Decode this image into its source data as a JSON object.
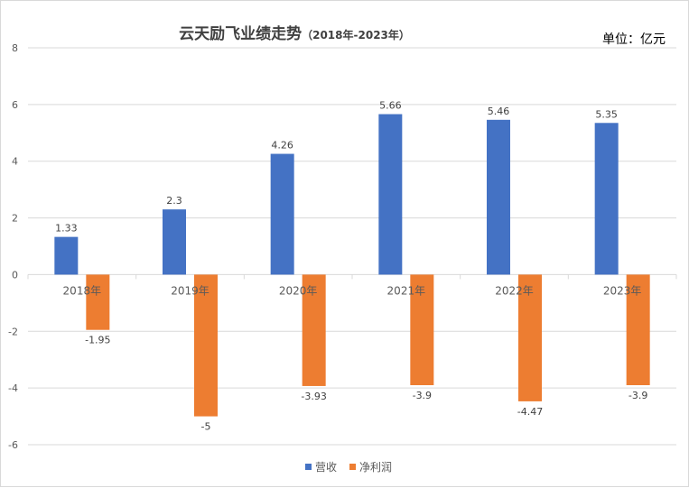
{
  "chart_data": {
    "type": "bar",
    "title": "云天励飞业绩走势",
    "subtitle": "（2018年-2023年）",
    "unit": "单位：亿元",
    "categories": [
      "2018年",
      "2019年",
      "2020年",
      "2021年",
      "2022年",
      "2023年"
    ],
    "series": [
      {
        "name": "营收",
        "color": "#4472C4",
        "values": [
          1.33,
          2.3,
          4.26,
          5.66,
          5.46,
          5.35
        ]
      },
      {
        "name": "净利润",
        "color": "#ED7D31",
        "values": [
          -1.95,
          -5,
          -3.93,
          -3.9,
          -4.47,
          -3.9
        ]
      }
    ],
    "ylim": [
      -6,
      8
    ],
    "yticks": [
      8,
      6,
      4,
      2,
      0,
      -2,
      -4,
      -6
    ],
    "grid": true,
    "legend_position": "bottom"
  }
}
